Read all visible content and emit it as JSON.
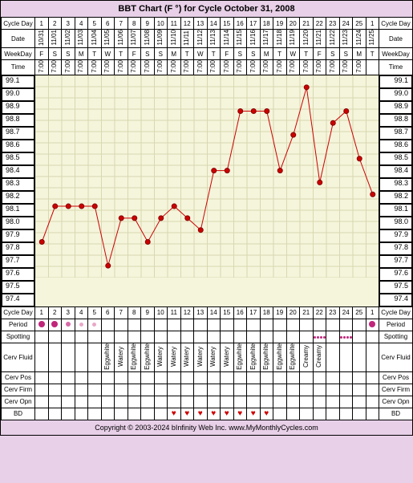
{
  "title": "BBT Chart (F °) for Cycle October 31, 2008",
  "footer": "Copyright © 2003-2024 bInfinity Web Inc.   www.MyMonthlyCycles.com",
  "labels": {
    "cycleDay": "Cycle Day",
    "date": "Date",
    "weekday": "WeekDay",
    "time": "Time",
    "period": "Period",
    "spotting": "Spotting",
    "cervFluid": "Cerv Fluid",
    "cervPos": "Cerv Pos",
    "cervFirm": "Cerv Firm",
    "cervOpn": "Cerv Opn",
    "bd": "BD"
  },
  "cycleDays": [
    1,
    2,
    3,
    4,
    5,
    6,
    7,
    8,
    9,
    10,
    11,
    12,
    13,
    14,
    15,
    16,
    17,
    18,
    19,
    20,
    21,
    22,
    23,
    24,
    25,
    1
  ],
  "dates": [
    "10/31",
    "11/01",
    "11/02",
    "11/03",
    "11/04",
    "11/05",
    "11/06",
    "11/07",
    "11/08",
    "11/09",
    "11/10",
    "11/11",
    "11/12",
    "11/13",
    "11/14",
    "11/15",
    "11/16",
    "11/17",
    "11/18",
    "11/19",
    "11/20",
    "11/21",
    "11/22",
    "11/23",
    "11/24",
    "11/25"
  ],
  "weekdays": [
    "F",
    "S",
    "S",
    "M",
    "T",
    "W",
    "T",
    "F",
    "S",
    "S",
    "M",
    "T",
    "W",
    "T",
    "F",
    "S",
    "S",
    "M",
    "T",
    "W",
    "T",
    "F",
    "S",
    "S",
    "M",
    "T"
  ],
  "times": [
    "7:00",
    "7:00",
    "7:00",
    "7:00",
    "7:00",
    "7:00",
    "7:00",
    "7:00",
    "7:00",
    "7:00",
    "7:00",
    "7:00",
    "7:00",
    "7:00",
    "7:00",
    "7:00",
    "7:00",
    "7:00",
    "7:00",
    "7:00",
    "7:00",
    "7:00",
    "7:00",
    "7:00",
    "7:00",
    ""
  ],
  "temps": [
    97.7,
    98.0,
    98.0,
    98.0,
    98.0,
    97.5,
    97.9,
    97.9,
    97.7,
    97.9,
    98.0,
    97.9,
    97.8,
    98.3,
    98.3,
    98.8,
    98.8,
    98.8,
    98.3,
    98.6,
    99.0,
    98.2,
    98.7,
    98.8,
    98.4,
    98.1
  ],
  "yAxis": {
    "min": 97.4,
    "max": 99.1,
    "step": 0.1,
    "labels": [
      "99.1",
      "99.0",
      "98.9",
      "98.8",
      "98.7",
      "98.6",
      "98.5",
      "98.4",
      "98.3",
      "98.2",
      "98.1",
      "98.0",
      "97.9",
      "97.8",
      "97.7",
      "97.6",
      "97.5",
      "97.4"
    ]
  },
  "period": [
    "heavy",
    "heavy",
    "med",
    "light",
    "light",
    "",
    "",
    "",
    "",
    "",
    "",
    "",
    "",
    "",
    "",
    "",
    "",
    "",
    "",
    "",
    "",
    "",
    "",
    "",
    "",
    "heavy"
  ],
  "periodColors": {
    "heavy": "#c0267a",
    "med": "#d86aa8",
    "light": "#e8a8c8"
  },
  "spotting": [
    "",
    "",
    "",
    "",
    "",
    "",
    "",
    "",
    "",
    "",
    "",
    "",
    "",
    "",
    "",
    "",
    "",
    "",
    "",
    "",
    "",
    "spots",
    "",
    "spots",
    "",
    ""
  ],
  "spotColor": "#c0267a",
  "cervFluid": [
    "",
    "",
    "",
    "",
    "",
    "Eggwhite",
    "Watery",
    "Eggwhite",
    "Eggwhite",
    "Watery",
    "Watery",
    "Watery",
    "Watery",
    "Watery",
    "Watery",
    "Eggwhite",
    "Eggwhite",
    "Eggwhite",
    "Eggwhite",
    "Eggwhite",
    "Creamy",
    "Creamy",
    "",
    "",
    "",
    ""
  ],
  "bd": [
    "",
    "",
    "",
    "",
    "",
    "",
    "",
    "",
    "",
    "",
    "♥",
    "♥",
    "♥",
    "♥",
    "♥",
    "♥",
    "♥",
    "♥",
    "",
    "",
    "",
    "",
    "",
    "",
    "",
    ""
  ],
  "chartStyle": {
    "plotBg": "#f5f5dc",
    "gridColor": "#d8d8b0",
    "lineColor": "#cc0000",
    "pointColor": "#cc0000",
    "pointRadius": 3,
    "lineWidth": 1,
    "rowHeightPx": 14,
    "colWidthPx": 16.5,
    "plotHeightPx": 252,
    "plotWidthPx": 429
  }
}
